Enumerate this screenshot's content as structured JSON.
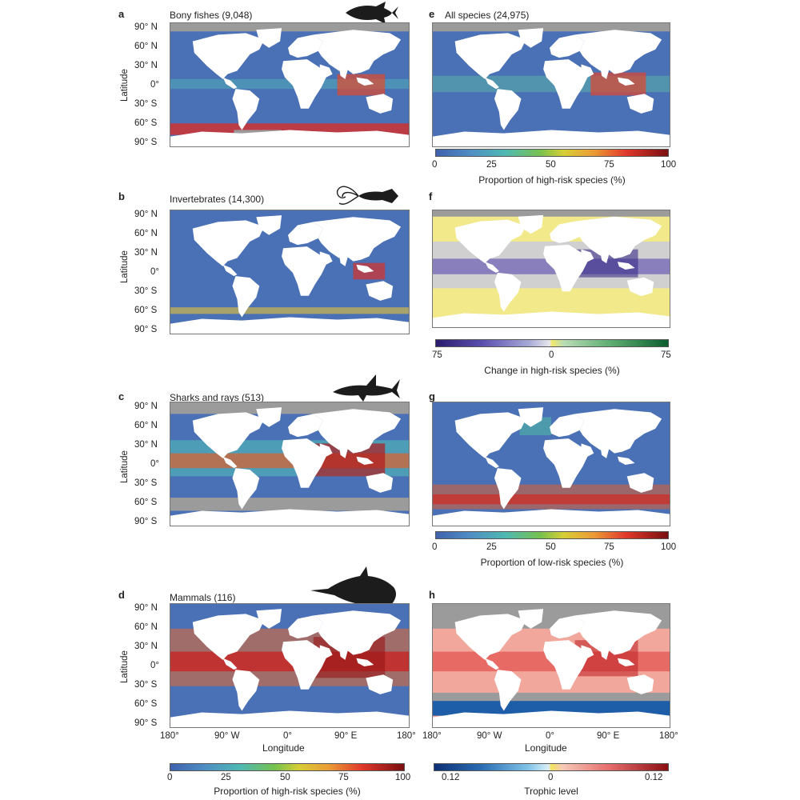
{
  "panels": {
    "a": {
      "letter": "a",
      "title": "Bony fishes (9,048)"
    },
    "b": {
      "letter": "b",
      "title": "Invertebrates (14,300)"
    },
    "c": {
      "letter": "c",
      "title": "Sharks and rays (513)"
    },
    "d": {
      "letter": "d",
      "title": "Mammals (116)"
    },
    "e": {
      "letter": "e",
      "title": "All species (24,975)"
    },
    "f": {
      "letter": "f",
      "title": ""
    },
    "g": {
      "letter": "g",
      "title": ""
    },
    "h": {
      "letter": "h",
      "title": ""
    }
  },
  "axes": {
    "ylabel": "Latitude",
    "xlabel": "Longitude",
    "lat_ticks": [
      "90° N",
      "60° N",
      "30° N",
      "0°",
      "30° S",
      "60° S",
      "90° S"
    ],
    "lon_ticks": [
      "180°",
      "90° W",
      "0°",
      "90° E",
      "180°"
    ]
  },
  "colorbars": {
    "risk_e": {
      "ticks": [
        "0",
        "25",
        "50",
        "75",
        "100"
      ],
      "title": "Proportion of high-risk species (%)"
    },
    "change_f": {
      "ticks": [
        "75",
        "0",
        "75"
      ],
      "title": "Change in high-risk species (%)"
    },
    "lowrisk_g": {
      "ticks": [
        "0",
        "25",
        "50",
        "75",
        "100"
      ],
      "title": "Proportion of low-risk species (%)"
    },
    "risk_bottom": {
      "ticks": [
        "0",
        "25",
        "50",
        "75",
        "100"
      ],
      "title": "Proportion of high-risk species (%)"
    },
    "trophic_h": {
      "ticks": [
        "0.12",
        "0",
        "0.12"
      ],
      "title": "Trophic level"
    }
  },
  "colors": {
    "ocean_base": "#4a70b5",
    "land": "#ffffff",
    "nodata": "#9b9b9b",
    "silhouette": "#1c1c1c"
  },
  "icons": [
    "tuna-silhouette-icon",
    "squid-silhouette-icon",
    "shark-silhouette-icon",
    "dolphin-silhouette-icon"
  ]
}
